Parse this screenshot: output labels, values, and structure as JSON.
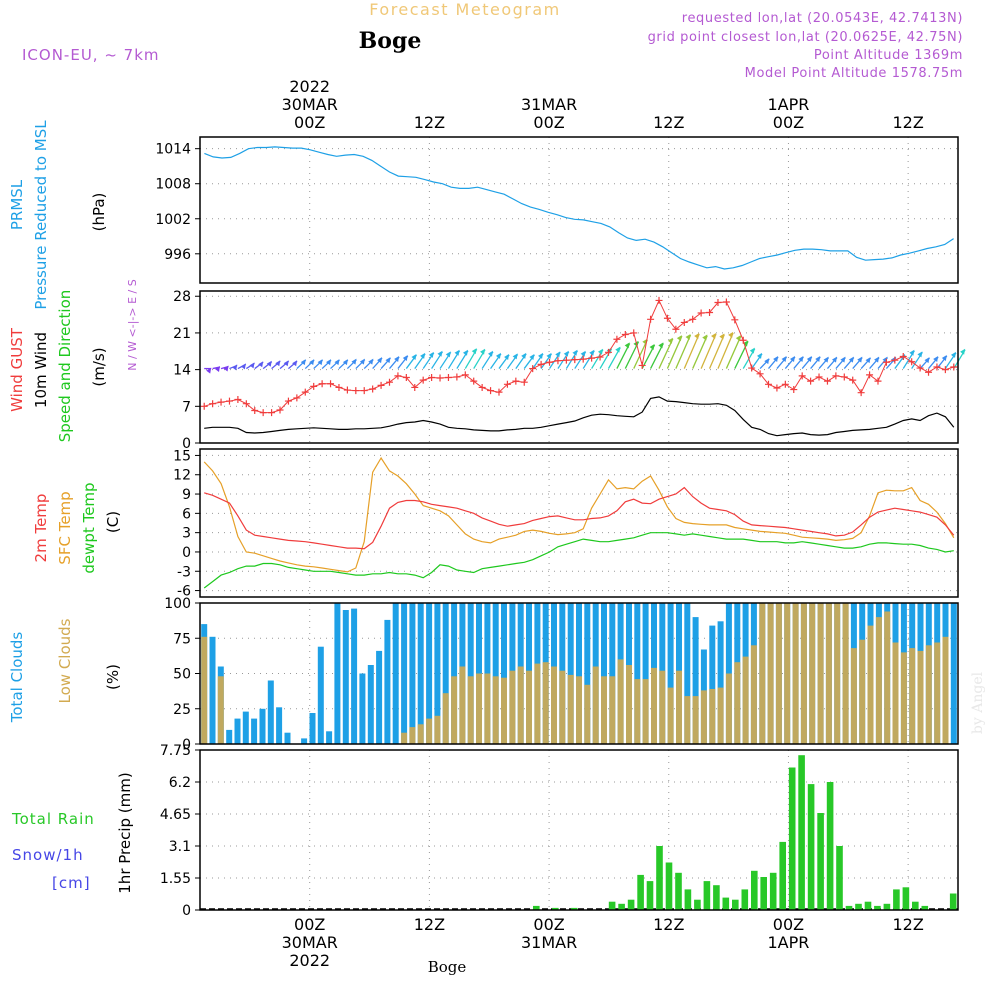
{
  "header": {
    "forecast_title": "Forecast Meteogram",
    "location": "Boge",
    "model": "ICON-EU, ~ 7km",
    "requested": "requested lon,lat (20.0543E, 42.7413N)",
    "closest": "grid point closest lon,lat (20.0625E, 42.75N)",
    "point_alt": "Point Altitude 1369m",
    "model_alt": "Model Point Altitude 1578.75m",
    "footer_location": "Boge",
    "watermark": "by Angel"
  },
  "colors": {
    "pressure": "#1ea0e6",
    "gust": "#f03c3c",
    "wind": "#000000",
    "temp": "#f03c3c",
    "sfc_temp": "#e6a028",
    "dewpt": "#1ec81e",
    "total_clouds": "#1ea0e6",
    "low_clouds": "#d2aa50",
    "rain": "#28c828",
    "snow": "#4646e6",
    "meta": "#b45ad2",
    "title": "#f0c878"
  },
  "time_axis": {
    "ticks": [
      {
        "label": "00Z",
        "date": "30MAR",
        "year": "2022",
        "hour": 0
      },
      {
        "label": "12Z",
        "date": "",
        "year": "",
        "hour": 12
      },
      {
        "label": "00Z",
        "date": "31MAR",
        "year": "",
        "hour": 24
      },
      {
        "label": "12Z",
        "date": "",
        "year": "",
        "hour": 36
      },
      {
        "label": "00Z",
        "date": "1APR",
        "year": "",
        "hour": 48
      },
      {
        "label": "12Z",
        "date": "",
        "year": "",
        "hour": 60
      }
    ],
    "range": [
      -11,
      65
    ]
  },
  "chart_data": [
    {
      "type": "line",
      "ylabel_lines": [
        "PRMSL",
        "Pressure Reduced to MSL"
      ],
      "unit": "(hPa)",
      "yticks": [
        "1014",
        "1008",
        "1002",
        "996"
      ],
      "ylim": [
        991,
        1016
      ],
      "grid": true,
      "series": [
        {
          "values": [
            1013.2,
            1012.6,
            1012.4,
            1012.5,
            1013.2,
            1014.0,
            1014.2,
            1014.2,
            1014.3,
            1014.2,
            1014.1,
            1014.1,
            1013.8,
            1013.4,
            1013.0,
            1012.7,
            1012.9,
            1013.0,
            1012.7,
            1012.0,
            1011.0,
            1010.0,
            1009.3,
            1009.2,
            1009.1,
            1008.7,
            1008.3,
            1008.0,
            1007.4,
            1007.2,
            1007.2,
            1007.4,
            1007.0,
            1006.6,
            1006.2,
            1005.4,
            1004.6,
            1004.0,
            1003.6,
            1003.1,
            1002.7,
            1002.2,
            1001.9,
            1001.8,
            1001.5,
            1001.2,
            1000.6,
            999.6,
            998.7,
            998.3,
            998.5,
            998.0,
            997.2,
            996.2,
            995.2,
            994.6,
            994.1,
            993.6,
            993.8,
            993.4,
            993.6,
            994.0,
            994.6,
            995.2,
            995.5,
            995.8,
            996.2,
            996.6,
            996.8,
            996.8,
            996.7,
            996.5,
            996.5,
            996.5,
            995.4,
            994.9,
            995.0,
            995.1,
            995.3,
            995.8,
            996.1,
            996.5,
            996.9,
            997.2,
            997.6,
            998.6
          ]
        }
      ]
    },
    {
      "type": "line",
      "ylabel_lines": [
        "Wind GUST",
        "10m Wind",
        "Speed and Direction"
      ],
      "unit": "(m/s)",
      "yticks": [
        "28",
        "21",
        "14",
        "7",
        "0"
      ],
      "ylim": [
        0,
        29
      ],
      "compass": "N / W <-|-> E / S",
      "grid": true,
      "series": [
        {
          "values": [
            7.0,
            7.5,
            7.8,
            8.0,
            8.3,
            7.5,
            6.2,
            5.8,
            5.8,
            6.3,
            8.0,
            8.6,
            9.7,
            10.8,
            11.3,
            11.3,
            10.6,
            10.1,
            10.0,
            10.0,
            10.3,
            11.0,
            11.6,
            12.8,
            12.5,
            10.6,
            12.0,
            12.5,
            12.4,
            12.5,
            12.6,
            13.0,
            11.8,
            10.6,
            10.0,
            9.7,
            11.2,
            11.8,
            11.6,
            14.2,
            15.0,
            15.4,
            15.7,
            15.8,
            15.9,
            16.0,
            16.2,
            16.4,
            17.3,
            19.8,
            20.7,
            21.0,
            14.8,
            23.6,
            27.2,
            23.8,
            21.7,
            23.0,
            23.6,
            24.8,
            24.9,
            26.8,
            26.9,
            23.5,
            19.6,
            14.3,
            13.2,
            11.2,
            10.5,
            11.2,
            10.2,
            12.8,
            11.8,
            12.6,
            11.8,
            12.8,
            12.6,
            12.0,
            9.6,
            13.0,
            11.8,
            15.4,
            15.8,
            16.5,
            15.5,
            14.3,
            13.5,
            14.5,
            14.0,
            14.5
          ]
        },
        {
          "values": [
            2.8,
            3.0,
            3.0,
            3.0,
            2.8,
            2.0,
            1.9,
            2.0,
            2.2,
            2.4,
            2.6,
            2.7,
            2.8,
            2.9,
            2.8,
            2.7,
            2.6,
            2.6,
            2.7,
            2.7,
            2.8,
            2.9,
            3.2,
            3.6,
            3.9,
            4.0,
            4.3,
            4.0,
            3.6,
            3.0,
            2.8,
            2.7,
            2.5,
            2.4,
            2.3,
            2.3,
            2.5,
            2.6,
            2.8,
            2.8,
            3.0,
            3.3,
            3.6,
            3.9,
            4.2,
            4.8,
            5.3,
            5.5,
            5.4,
            5.2,
            5.1,
            5.0,
            5.9,
            8.5,
            8.8,
            8.0,
            7.9,
            7.7,
            7.5,
            7.4,
            7.4,
            7.5,
            7.2,
            6.2,
            4.5,
            3.0,
            2.6,
            1.8,
            1.4,
            1.6,
            1.8,
            1.9,
            1.6,
            1.5,
            1.6,
            2.0,
            2.2,
            2.4,
            2.5,
            2.6,
            2.8,
            3.0,
            3.6,
            4.3,
            4.6,
            4.3,
            5.2,
            5.7,
            5.0,
            3.0
          ]
        },
        {
          "values": [
            14.2,
            14.5,
            14.6,
            14.8,
            15.0,
            15.2,
            15.4,
            15.5,
            15.6,
            15.6,
            15.6,
            15.8,
            15.8,
            15.8,
            15.8,
            15.8,
            15.8,
            15.9,
            15.9,
            15.9,
            16.2,
            16.2,
            16.4,
            16.6,
            16.8,
            17.0,
            17.2,
            17.4,
            17.3,
            17.6,
            17.6,
            17.9,
            17.8,
            17.4,
            17.0,
            16.8,
            16.9,
            17.0,
            16.8,
            17.0,
            17.0,
            17.3,
            17.4,
            17.6,
            17.4,
            17.6,
            17.8,
            18.0,
            18.2,
            19.0,
            19.3,
            19.7,
            18.7,
            19.0,
            19.9,
            20.4,
            20.6,
            20.8,
            20.5,
            20.8,
            20.7,
            21.0,
            20.4,
            19.4,
            18.0,
            17.0,
            16.0,
            16.4,
            16.4,
            16.4,
            16.4,
            16.4,
            16.4,
            16.3,
            16.3,
            16.3,
            16.3,
            16.3,
            16.2,
            16.3,
            16.3,
            16.3,
            16.8,
            17.6,
            17.3,
            16.2,
            16.4,
            16.6,
            17.2,
            17.8
          ]
        }
      ]
    },
    {
      "type": "line",
      "ylabel_lines": [
        "2m Temp",
        "SFC Temp",
        "dewpt Temp"
      ],
      "unit": "(C)",
      "yticks": [
        "15",
        "12",
        "9",
        "6",
        "3",
        "0",
        "-3",
        "-6"
      ],
      "ylim": [
        -7,
        16
      ],
      "grid": true,
      "series": [
        {
          "values": [
            9.2,
            8.8,
            8.2,
            7.6,
            5.6,
            3.4,
            2.6,
            2.4,
            2.2,
            2.0,
            1.8,
            1.7,
            1.6,
            1.4,
            1.2,
            1.0,
            0.8,
            0.6,
            0.6,
            0.5,
            1.5,
            4.0,
            6.8,
            7.7,
            8.0,
            8.0,
            7.8,
            7.4,
            7.2,
            7.0,
            6.8,
            6.4,
            6.0,
            5.3,
            4.8,
            4.3,
            4.0,
            4.2,
            4.4,
            4.9,
            5.2,
            5.5,
            5.6,
            5.3,
            5.0,
            5.0,
            5.2,
            5.3,
            5.6,
            6.4,
            7.8,
            8.2,
            7.6,
            7.5,
            8.2,
            8.6,
            9.0,
            10.0,
            8.6,
            7.6,
            6.8,
            6.6,
            6.4,
            5.8,
            4.8,
            4.2,
            4.1,
            4.0,
            3.9,
            3.8,
            3.6,
            3.4,
            3.2,
            3.0,
            2.8,
            2.5,
            2.6,
            3.1,
            4.2,
            5.4,
            6.2,
            6.5,
            6.8,
            6.6,
            6.4,
            6.2,
            5.8,
            5.4,
            4.2,
            2.6
          ]
        },
        {
          "values": [
            14.0,
            12.6,
            10.6,
            7.0,
            2.4,
            0.0,
            -0.2,
            -0.6,
            -1.0,
            -1.4,
            -1.7,
            -2.0,
            -2.2,
            -2.3,
            -2.5,
            -2.7,
            -2.9,
            -3.1,
            -2.5,
            1.6,
            12.4,
            14.6,
            12.6,
            11.8,
            10.6,
            9.0,
            7.2,
            6.8,
            6.4,
            5.6,
            4.2,
            2.8,
            2.0,
            1.6,
            1.4,
            2.0,
            2.3,
            2.6,
            3.2,
            3.4,
            3.2,
            2.9,
            2.7,
            2.8,
            3.0,
            3.6,
            6.8,
            9.0,
            11.2,
            9.8,
            10.0,
            9.8,
            11.0,
            11.8,
            9.6,
            7.0,
            5.2,
            4.6,
            4.4,
            4.3,
            4.2,
            4.2,
            4.2,
            3.8,
            3.6,
            3.4,
            3.2,
            3.1,
            3.0,
            2.9,
            2.6,
            2.3,
            2.2,
            2.1,
            2.0,
            1.8,
            1.9,
            2.1,
            3.0,
            5.6,
            9.2,
            9.6,
            9.5,
            9.5,
            10.0,
            8.0,
            7.4,
            6.2,
            4.4,
            2.2
          ]
        },
        {
          "values": [
            -5.6,
            -4.6,
            -3.6,
            -3.2,
            -2.6,
            -2.2,
            -2.2,
            -1.8,
            -1.8,
            -2.0,
            -2.4,
            -2.6,
            -2.8,
            -3.0,
            -3.0,
            -3.0,
            -3.2,
            -3.4,
            -3.6,
            -3.6,
            -3.4,
            -3.4,
            -3.2,
            -3.4,
            -3.4,
            -3.6,
            -4.0,
            -3.2,
            -2.0,
            -2.2,
            -2.8,
            -3.0,
            -3.2,
            -2.6,
            -2.4,
            -2.2,
            -2.0,
            -1.8,
            -1.6,
            -1.2,
            -0.6,
            0.0,
            0.8,
            1.2,
            1.6,
            2.0,
            1.8,
            1.6,
            1.6,
            1.8,
            2.0,
            2.2,
            2.6,
            3.0,
            3.0,
            3.0,
            2.8,
            2.6,
            2.8,
            2.6,
            2.4,
            2.2,
            2.0,
            2.0,
            2.0,
            1.8,
            1.6,
            1.6,
            1.6,
            1.4,
            1.4,
            1.6,
            1.4,
            1.2,
            1.0,
            0.8,
            0.6,
            0.6,
            0.8,
            1.2,
            1.4,
            1.4,
            1.3,
            1.2,
            1.2,
            1.0,
            0.6,
            0.4,
            0.0,
            0.2
          ]
        }
      ]
    },
    {
      "type": "bar",
      "ylabel_lines": [
        "Total Clouds",
        "Low Clouds"
      ],
      "unit": "(%)",
      "yticks": [
        "100",
        "75",
        "50",
        "25",
        "0"
      ],
      "ylim": [
        0,
        100
      ],
      "grid": true,
      "series": [
        {
          "values": [
            85,
            76,
            55,
            10,
            18,
            23,
            18,
            25,
            45,
            26,
            8,
            0,
            4,
            22,
            69,
            9,
            100,
            95,
            96,
            50,
            56,
            66,
            88,
            100,
            100,
            100,
            100,
            100,
            100,
            100,
            100,
            100,
            100,
            100,
            100,
            100,
            100,
            100,
            100,
            100,
            100,
            100,
            100,
            100,
            100,
            100,
            100,
            100,
            100,
            100,
            100,
            100,
            100,
            100,
            100,
            100,
            100,
            100,
            100,
            90,
            67,
            84,
            87,
            100,
            100,
            100,
            100,
            100,
            100,
            100,
            100,
            100,
            100,
            100,
            100,
            100,
            100,
            100,
            100,
            100,
            100,
            100,
            100,
            100,
            100,
            100,
            100,
            100,
            100,
            100,
            100
          ]
        },
        {
          "values": [
            76,
            0,
            48,
            0,
            0,
            0,
            0,
            0,
            0,
            0,
            0,
            0,
            0,
            0,
            0,
            0,
            0,
            0,
            0,
            0,
            0,
            0,
            0,
            0,
            8,
            12,
            14,
            18,
            20,
            36,
            48,
            55,
            48,
            50,
            50,
            48,
            47,
            52,
            55,
            52,
            57,
            58,
            55,
            52,
            49,
            48,
            42,
            55,
            48,
            48,
            60,
            56,
            46,
            46,
            54,
            52,
            40,
            52,
            34,
            34,
            38,
            39,
            40,
            50,
            58,
            62,
            70,
            100,
            100,
            100,
            100,
            100,
            100,
            100,
            100,
            100,
            100,
            100,
            68,
            74,
            84,
            90,
            94,
            72,
            65,
            68,
            66,
            70,
            72,
            76
          ]
        }
      ]
    },
    {
      "type": "bar",
      "ylabel_lines": [
        "Total Rain",
        "Snow/1h",
        "[cm]"
      ],
      "unit": "1hr Precip (mm)",
      "yticks": [
        "7.75",
        "6.2",
        "4.65",
        "3.1",
        "1.55",
        "0"
      ],
      "ylim": [
        0,
        7.75
      ],
      "grid": true,
      "series": [
        {
          "values": [
            0,
            0,
            0,
            0,
            0,
            0,
            0,
            0,
            0,
            0,
            0,
            0,
            0,
            0,
            0,
            0,
            0,
            0,
            0,
            0,
            0,
            0,
            0,
            0,
            0,
            0,
            0,
            0,
            0,
            0,
            0,
            0,
            0,
            0,
            0,
            0.2,
            0,
            0.1,
            0,
            0.1,
            0,
            0,
            0,
            0.4,
            0.3,
            0.5,
            1.7,
            1.4,
            3.1,
            2.3,
            1.8,
            1.0,
            0.5,
            1.4,
            1.2,
            0.6,
            0.5,
            1.0,
            1.9,
            1.6,
            1.8,
            3.3,
            6.9,
            7.5,
            6.1,
            4.7,
            6.2,
            3.1,
            0.2,
            0.3,
            0.4,
            0.2,
            0.3,
            1.0,
            1.1,
            0.4,
            0.2,
            0,
            0,
            0.8
          ]
        }
      ]
    }
  ]
}
